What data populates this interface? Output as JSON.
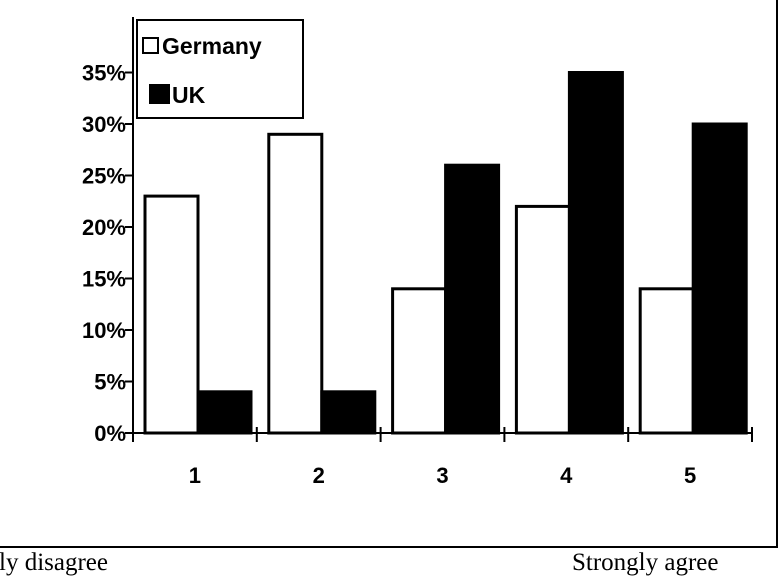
{
  "chart_data": {
    "type": "bar",
    "categories": [
      "1",
      "2",
      "3",
      "4",
      "5"
    ],
    "series": [
      {
        "name": "Germany",
        "values": [
          23,
          29,
          14,
          22,
          14
        ],
        "color": "#ffffff"
      },
      {
        "name": "UK",
        "values": [
          4,
          4,
          26,
          35,
          30
        ],
        "color": "#000000"
      }
    ],
    "y_ticks": [
      "0%",
      "5%",
      "10%",
      "15%",
      "20%",
      "25%",
      "30%",
      "35%"
    ],
    "ylim": [
      0,
      35
    ],
    "grid": false,
    "legend_position": "top-left",
    "scale_labels": {
      "left": "ngly disagree",
      "right": "Strongly agree"
    }
  }
}
